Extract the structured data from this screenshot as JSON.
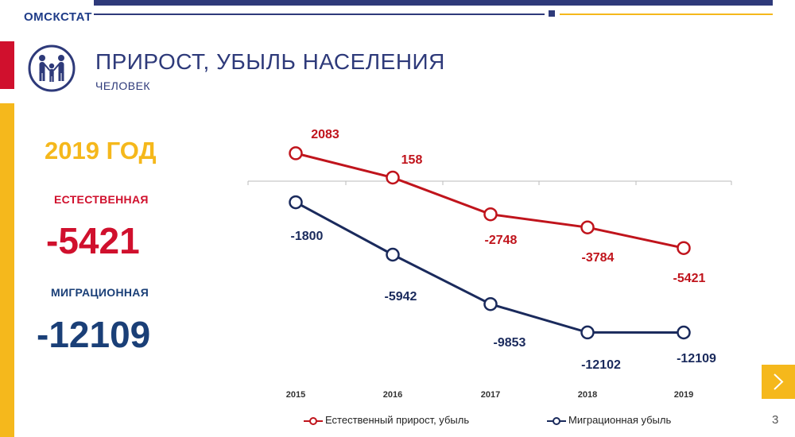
{
  "header": {
    "brand": "ОМСКСТАТ",
    "title": "ПРИРОСТ, УБЫЛЬ НАСЕЛЕНИЯ",
    "subtitle": "ЧЕЛОВЕК"
  },
  "summary": {
    "year": "2019 ГОД",
    "natural_label": "ЕСТЕСТВЕННАЯ",
    "natural_value": "-5421",
    "migration_label": "МИГРАЦИОННАЯ",
    "migration_value": "-12109"
  },
  "colors": {
    "red": "#d0102d",
    "navy": "#1a2a5c",
    "gold": "#f5b81c",
    "blue": "#2e3a7a"
  },
  "icons": {
    "logo": "family-icon",
    "next": "chevron-right-icon"
  },
  "page_number": "3",
  "chart_data": {
    "type": "line",
    "categories": [
      "2015",
      "2016",
      "2017",
      "2018",
      "2019"
    ],
    "series": [
      {
        "name": "Естественный прирост, убыль",
        "values": [
          2083,
          158,
          -2748,
          -3784,
          -5421
        ],
        "color": "#c0141c"
      },
      {
        "name": "Миграционная убыль",
        "values": [
          -1800,
          -5942,
          -9853,
          -12102,
          -12109
        ],
        "color": "#1a2a5c"
      }
    ],
    "legend_position": "bottom",
    "grid": false
  }
}
